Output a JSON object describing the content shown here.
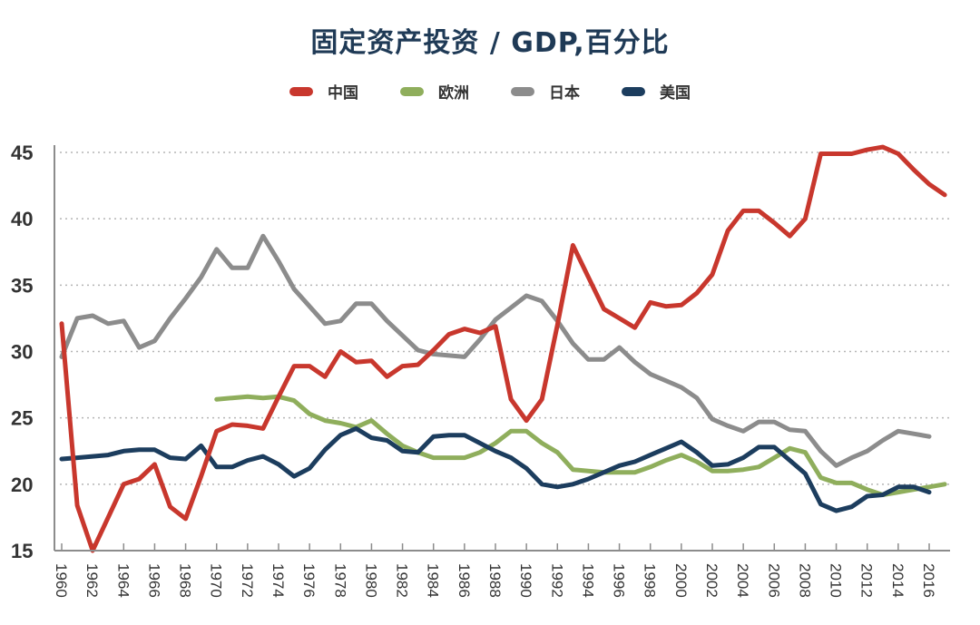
{
  "chart_data": {
    "type": "line",
    "title": "固定资产投资 / GDP,百分比",
    "xlabel": "",
    "ylabel": "",
    "ylim": [
      15,
      45
    ],
    "xlim": [
      1960,
      2017
    ],
    "yticks": [
      "15",
      "20",
      "25",
      "30",
      "35",
      "40",
      "45"
    ],
    "xticks": [
      "1960",
      "1962",
      "1964",
      "1966",
      "1968",
      "1970",
      "1972",
      "1974",
      "1976",
      "1978",
      "1980",
      "1982",
      "1984",
      "1986",
      "1988",
      "1990",
      "1992",
      "1994",
      "1996",
      "1998",
      "2000",
      "2002",
      "2004",
      "2006",
      "2008",
      "2010",
      "2012",
      "2014",
      "2016"
    ],
    "grid": "horizontal-dotted",
    "legend_position": "top-center",
    "series": [
      {
        "name": "中国",
        "color": "#c8372d",
        "start_year": 1960,
        "values": [
          32.1,
          18.4,
          15.0,
          17.5,
          20.0,
          20.4,
          21.5,
          18.3,
          17.4,
          20.6,
          24.0,
          24.5,
          24.4,
          24.2,
          26.6,
          28.9,
          28.9,
          28.1,
          30.0,
          29.2,
          29.3,
          28.1,
          28.9,
          29.0,
          30.1,
          31.3,
          31.7,
          31.4,
          31.9,
          26.4,
          24.8,
          26.4,
          32.0,
          38.0,
          35.6,
          33.2,
          32.5,
          31.8,
          33.7,
          33.4,
          33.5,
          34.4,
          35.8,
          39.1,
          40.6,
          40.6,
          39.7,
          38.7,
          40.0,
          44.9,
          44.9,
          44.9,
          45.2,
          45.4,
          44.9,
          43.7,
          42.6,
          41.8
        ]
      },
      {
        "name": "欧洲",
        "color": "#8fae5c",
        "start_year": 1970,
        "values": [
          26.4,
          26.5,
          26.6,
          26.5,
          26.6,
          26.3,
          25.3,
          24.8,
          24.6,
          24.3,
          24.8,
          23.8,
          22.9,
          22.4,
          22.0,
          22.0,
          22.0,
          22.4,
          23.1,
          24.0,
          24.0,
          23.1,
          22.4,
          21.1,
          21.0,
          20.9,
          20.9,
          20.9,
          21.3,
          21.8,
          22.2,
          21.7,
          21.0,
          21.0,
          21.1,
          21.3,
          22.0,
          22.7,
          22.4,
          20.5,
          20.1,
          20.1,
          19.6,
          19.2,
          19.4,
          19.6,
          19.8,
          20.0
        ]
      },
      {
        "name": "日本",
        "color": "#8c8c8c",
        "start_year": 1960,
        "values": [
          29.6,
          32.5,
          32.7,
          32.1,
          32.3,
          30.3,
          30.8,
          32.5,
          34.0,
          35.6,
          37.7,
          36.3,
          36.3,
          38.7,
          36.8,
          34.7,
          33.4,
          32.1,
          32.3,
          33.6,
          33.6,
          32.3,
          31.2,
          30.1,
          29.8,
          29.7,
          29.6,
          30.9,
          32.4,
          33.3,
          34.2,
          33.8,
          32.3,
          30.6,
          29.4,
          29.4,
          30.3,
          29.2,
          28.3,
          27.8,
          27.3,
          26.5,
          24.9,
          24.4,
          24.0,
          24.7,
          24.7,
          24.1,
          24.0,
          22.5,
          21.4,
          22.0,
          22.5,
          23.3,
          24.0,
          23.8,
          23.6
        ]
      },
      {
        "name": "美国",
        "color": "#1c3d5e",
        "start_year": 1960,
        "values": [
          21.9,
          22.0,
          22.1,
          22.2,
          22.5,
          22.6,
          22.6,
          22.0,
          21.9,
          22.9,
          21.3,
          21.3,
          21.8,
          22.1,
          21.5,
          20.6,
          21.2,
          22.6,
          23.7,
          24.2,
          23.5,
          23.3,
          22.5,
          22.4,
          23.6,
          23.7,
          23.7,
          23.1,
          22.5,
          22.0,
          21.2,
          20.0,
          19.8,
          20.0,
          20.4,
          20.9,
          21.4,
          21.7,
          22.2,
          22.7,
          23.2,
          22.4,
          21.4,
          21.5,
          22.0,
          22.8,
          22.8,
          21.8,
          20.8,
          18.5,
          18.0,
          18.3,
          19.1,
          19.2,
          19.8,
          19.8,
          19.4
        ]
      }
    ]
  }
}
